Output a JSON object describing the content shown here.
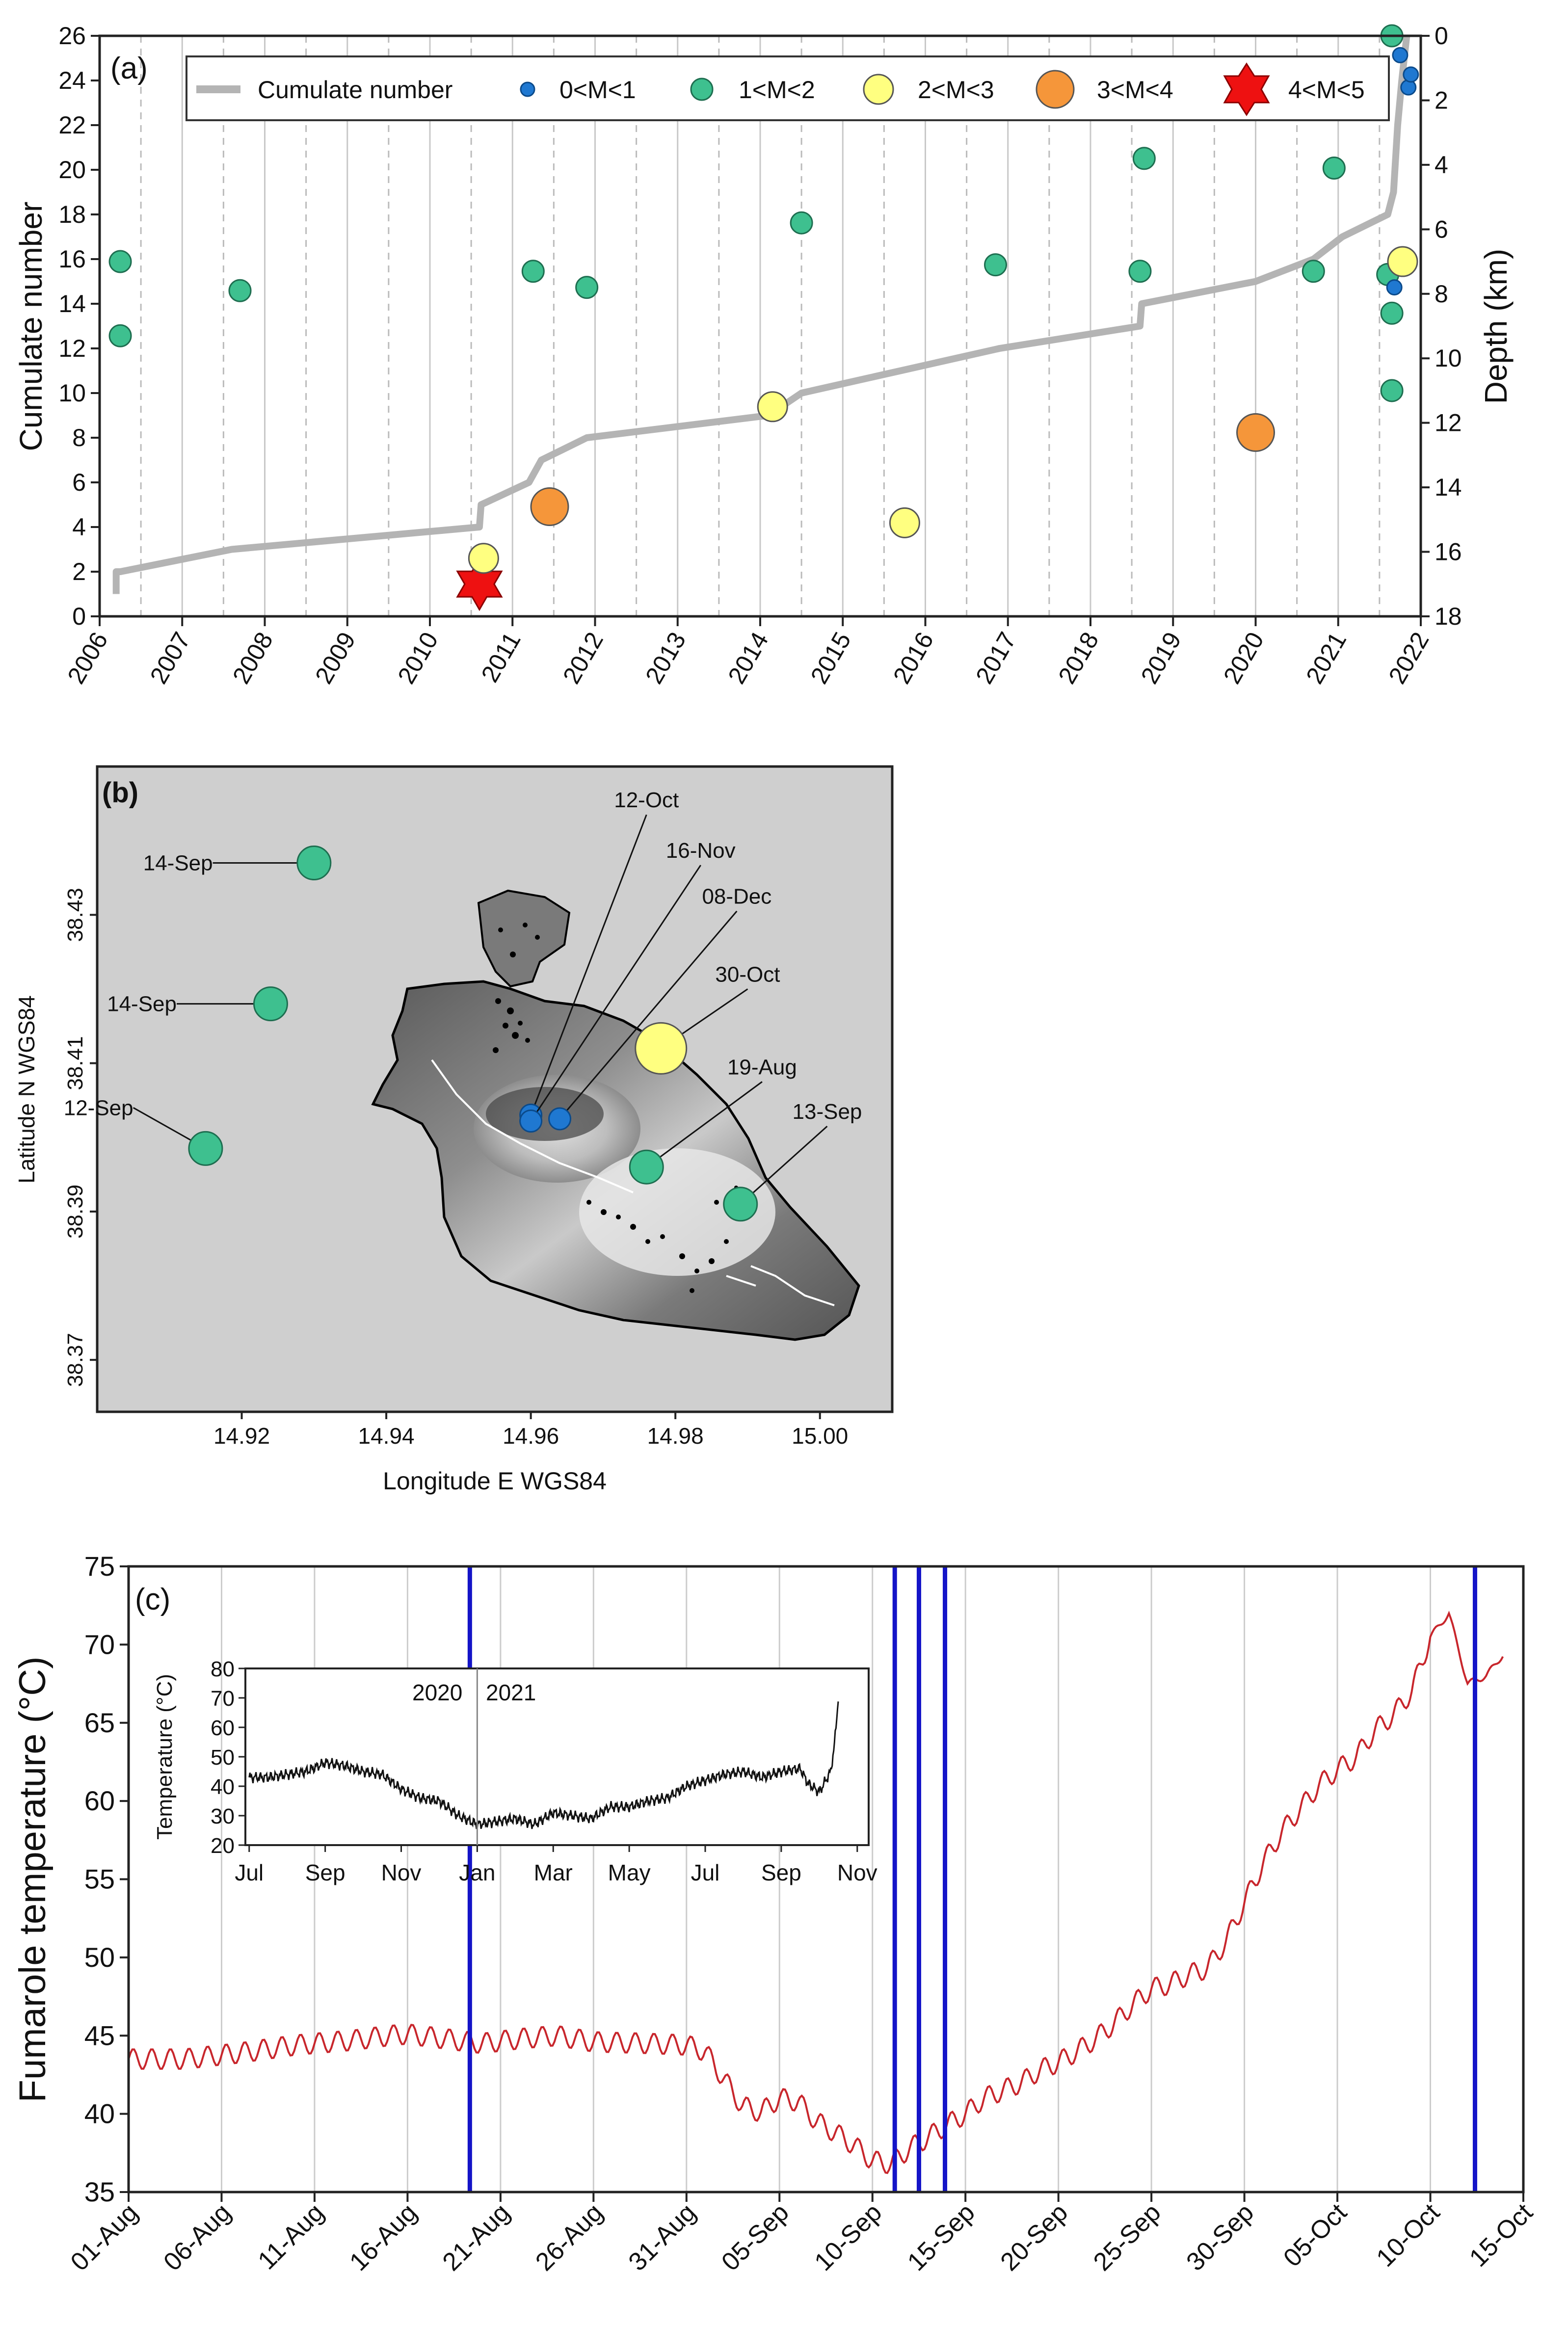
{
  "panel_a": {
    "label": "(a)",
    "ylabel_left": "Cumulate number",
    "ylabel_right": "Depth (km)",
    "legend": {
      "placement": "top",
      "cumulate": "Cumulate number",
      "m01": "0<M<1",
      "m12": "1<M<2",
      "m23": "2<M<3",
      "m34": "3<M<4",
      "m45": "4<M<5"
    }
  },
  "panel_b": {
    "label": "(b)",
    "xlabel": "Longitude E WGS84",
    "ylabel": "Latitude N WGS84"
  },
  "panel_c": {
    "label": "(c)",
    "ylabel": "Fumarole temperature (°C)",
    "inset": {
      "ylabel": "Temperature (°C)",
      "year_left": "2020",
      "year_right": "2021"
    }
  },
  "colors": {
    "m01": "#1f78d1",
    "m12": "#3ec08f",
    "m23": "#ffff80",
    "m34": "#f5963a",
    "m45": "#ee1111",
    "cumulate": "#b4b4b4",
    "temperature": "#c8262c",
    "events": "#1414c8",
    "inset_line": "#111111"
  },
  "chart_data": [
    {
      "id": "a",
      "type": "scatter",
      "title": "",
      "xlim": [
        2006,
        2022
      ],
      "x_ticks": [
        2006,
        2007,
        2008,
        2009,
        2010,
        2011,
        2012,
        2013,
        2014,
        2015,
        2016,
        2017,
        2018,
        2019,
        2020,
        2021,
        2022
      ],
      "ylim_left": [
        0,
        26
      ],
      "y_ticks_left": [
        0,
        2,
        4,
        6,
        8,
        10,
        12,
        14,
        16,
        18,
        20,
        22,
        24,
        26
      ],
      "ylim_right_depth_km": [
        0,
        18
      ],
      "y_ticks_right": [
        0,
        2,
        4,
        6,
        8,
        10,
        12,
        14,
        16,
        18
      ],
      "cumulate_series": {
        "name": "Cumulate number",
        "x": [
          2006.2,
          2006.2,
          2006.25,
          2007.6,
          2010.6,
          2010.62,
          2011.2,
          2011.35,
          2011.9,
          2014.1,
          2014.5,
          2016.9,
          2018.6,
          2018.62,
          2020.0,
          2020.7,
          2021.05,
          2021.6,
          2021.67,
          2021.72,
          2021.77,
          2021.8,
          2021.83
        ],
        "y": [
          1,
          2,
          2,
          3,
          4,
          5,
          6,
          7,
          8,
          9,
          10,
          12,
          13,
          14,
          15,
          16,
          17,
          18,
          19,
          22,
          24,
          25,
          26
        ]
      },
      "events": [
        {
          "year": 2006.25,
          "depth": 7.0,
          "class": "m12"
        },
        {
          "year": 2006.25,
          "depth": 9.3,
          "class": "m12"
        },
        {
          "year": 2007.7,
          "depth": 7.9,
          "class": "m12"
        },
        {
          "year": 2010.6,
          "depth": 17.0,
          "class": "m45"
        },
        {
          "year": 2010.65,
          "depth": 16.2,
          "class": "m23"
        },
        {
          "year": 2011.25,
          "depth": 7.3,
          "class": "m12"
        },
        {
          "year": 2011.45,
          "depth": 14.6,
          "class": "m34"
        },
        {
          "year": 2011.9,
          "depth": 7.8,
          "class": "m12"
        },
        {
          "year": 2014.15,
          "depth": 11.5,
          "class": "m23"
        },
        {
          "year": 2014.5,
          "depth": 5.8,
          "class": "m12"
        },
        {
          "year": 2015.75,
          "depth": 15.1,
          "class": "m23"
        },
        {
          "year": 2016.85,
          "depth": 7.1,
          "class": "m12"
        },
        {
          "year": 2018.6,
          "depth": 7.3,
          "class": "m12"
        },
        {
          "year": 2018.65,
          "depth": 3.8,
          "class": "m12"
        },
        {
          "year": 2020.0,
          "depth": 12.3,
          "class": "m34"
        },
        {
          "year": 2020.7,
          "depth": 7.3,
          "class": "m12"
        },
        {
          "year": 2020.95,
          "depth": 4.1,
          "class": "m12"
        },
        {
          "year": 2021.6,
          "depth": 7.4,
          "class": "m12"
        },
        {
          "year": 2021.65,
          "depth": 8.6,
          "class": "m12"
        },
        {
          "year": 2021.65,
          "depth": 11.0,
          "class": "m12"
        },
        {
          "year": 2021.65,
          "depth": 0.0,
          "class": "m12"
        },
        {
          "year": 2021.68,
          "depth": 7.8,
          "class": "m01"
        },
        {
          "year": 2021.75,
          "depth": 0.6,
          "class": "m01"
        },
        {
          "year": 2021.78,
          "depth": 7.0,
          "class": "m23"
        },
        {
          "year": 2021.85,
          "depth": 1.6,
          "class": "m01"
        },
        {
          "year": 2021.88,
          "depth": 1.2,
          "class": "m01"
        }
      ]
    },
    {
      "id": "b",
      "type": "scatter",
      "title": "",
      "xlabel": "Longitude E WGS84",
      "ylabel": "Latitude N WGS84",
      "xlim": [
        14.9,
        15.01
      ],
      "x_ticks": [
        "14.92",
        "14.94",
        "14.96",
        "14.98",
        "15.00"
      ],
      "ylim": [
        38.363,
        38.45
      ],
      "y_ticks": [
        "38.37",
        "38.39",
        "38.41",
        "38.43"
      ],
      "points": [
        {
          "lon": 14.93,
          "lat": 38.437,
          "class": "m12",
          "label": "14-Sep",
          "label_dx": -0.014,
          "label_dy": 0.0
        },
        {
          "lon": 14.924,
          "lat": 38.418,
          "class": "m12",
          "label": "14-Sep",
          "label_dx": -0.013,
          "label_dy": 0.0
        },
        {
          "lon": 14.915,
          "lat": 38.3985,
          "class": "m12",
          "label": "12-Sep",
          "label_dx": -0.01,
          "label_dy": 0.0055
        },
        {
          "lon": 14.96,
          "lat": 38.403,
          "class": "m01",
          "label": "12-Oct",
          "label_dx": 0.016,
          "label_dy": 0.0405
        },
        {
          "lon": 14.96,
          "lat": 38.4022,
          "class": "m01",
          "label": "16-Nov",
          "label_dx": 0.0235,
          "label_dy": 0.0345
        },
        {
          "lon": 14.964,
          "lat": 38.4025,
          "class": "m01",
          "label": "08-Dec",
          "label_dx": 0.0245,
          "label_dy": 0.028
        },
        {
          "lon": 14.978,
          "lat": 38.412,
          "class": "m23",
          "label": "30-Oct",
          "label_dx": 0.012,
          "label_dy": 0.008
        },
        {
          "lon": 14.976,
          "lat": 38.396,
          "class": "m12",
          "label": "19-Aug",
          "label_dx": 0.016,
          "label_dy": 0.0115
        },
        {
          "lon": 14.989,
          "lat": 38.391,
          "class": "m12",
          "label": "13-Sep",
          "label_dx": 0.012,
          "label_dy": 0.0105
        }
      ]
    },
    {
      "id": "c",
      "type": "line",
      "title": "",
      "ylabel": "Fumarole temperature (°C)",
      "xlim_days": [
        0,
        75
      ],
      "x_tick_days": [
        0,
        5,
        10,
        15,
        20,
        25,
        30,
        35,
        40,
        45,
        50,
        55,
        60,
        65,
        70,
        75
      ],
      "x_tick_labels": [
        "01-Aug",
        "06-Aug",
        "11-Aug",
        "16-Aug",
        "21-Aug",
        "26-Aug",
        "31-Aug",
        "05-Sep",
        "10-Sep",
        "15-Sep",
        "20-Sep",
        "25-Sep",
        "30-Sep",
        "05-Oct",
        "10-Oct",
        "15-Oct"
      ],
      "ylim": [
        35,
        75
      ],
      "y_ticks": [
        35,
        40,
        45,
        50,
        55,
        60,
        65,
        70,
        75
      ],
      "temperature_trend": {
        "day": [
          0,
          3,
          6,
          9,
          12,
          14,
          15,
          17,
          19,
          21,
          23,
          25,
          28,
          30,
          31,
          33,
          34,
          35,
          36,
          37,
          38,
          39,
          40,
          41,
          42,
          43,
          44,
          45,
          46,
          47,
          48,
          49,
          50,
          51,
          52,
          53,
          54,
          55,
          56,
          57,
          58,
          59,
          60,
          61,
          62,
          63,
          64,
          65,
          66,
          67,
          68,
          69,
          70,
          71,
          72,
          73,
          74
        ],
        "temp": [
          43.5,
          43.5,
          43.9,
          44.4,
          44.7,
          45.0,
          45.1,
          44.8,
          44.5,
          44.8,
          45.0,
          44.6,
          44.5,
          44.4,
          44.0,
          40.5,
          40.1,
          41.0,
          40.8,
          39.5,
          38.8,
          38.0,
          37.0,
          36.8,
          37.8,
          38.5,
          39.3,
          40.0,
          41.0,
          41.5,
          42.0,
          42.8,
          43.3,
          44.0,
          44.8,
          45.8,
          47.0,
          48.0,
          48.3,
          48.9,
          49.3,
          51.0,
          53.5,
          56.0,
          58.0,
          59.5,
          61.0,
          62.0,
          62.8,
          64.5,
          65.5,
          67.0,
          70.5,
          72.0,
          67.5,
          68.0,
          69.5
        ]
      },
      "seismic_event_days": [
        18.35,
        41.2,
        42.5,
        43.9,
        72.4
      ],
      "inset": {
        "type": "line",
        "ylabel": "Temperature (°C)",
        "ylim": [
          20,
          80
        ],
        "y_ticks": [
          20,
          30,
          40,
          50,
          60,
          70,
          80
        ],
        "x_tick_labels": [
          "Jul",
          "Sep",
          "Nov",
          "Jan",
          "Mar",
          "May",
          "Jul",
          "Sep",
          "Nov"
        ],
        "x_tick_months": [
          0,
          2,
          4,
          6,
          8,
          10,
          12,
          14,
          16
        ],
        "xlim_months": [
          -0.1,
          16.3
        ],
        "year_divider_month": 6,
        "series": {
          "month": [
            0,
            0.5,
            1.0,
            1.5,
            2.0,
            2.5,
            3.0,
            3.5,
            4.0,
            4.5,
            5.0,
            5.5,
            6.0,
            6.5,
            7.0,
            7.5,
            8.0,
            8.5,
            9.0,
            9.5,
            10.0,
            10.5,
            11.0,
            11.5,
            12.0,
            12.5,
            13.0,
            13.5,
            14.0,
            14.5,
            14.7,
            15.0,
            15.3,
            15.4,
            15.5
          ],
          "temp": [
            43,
            43,
            44,
            45,
            48,
            47,
            45,
            44,
            39,
            36,
            35,
            30,
            27,
            28,
            29,
            27,
            31,
            30,
            29,
            33,
            33,
            35,
            36,
            40,
            42,
            44,
            45,
            43,
            45,
            46,
            41,
            38,
            45,
            54,
            70
          ]
        }
      }
    }
  ]
}
